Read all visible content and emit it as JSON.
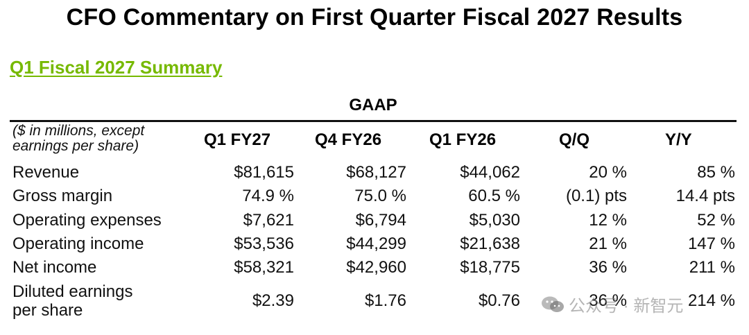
{
  "title": "CFO Commentary on First Quarter Fiscal 2027 Results",
  "summary_link": "Q1 Fiscal 2027 Summary",
  "table": {
    "group_header": "GAAP",
    "note_line1": "($ in millions, except",
    "note_line2": "earnings per share)",
    "columns": [
      "Q1 FY27",
      "Q4 FY26",
      "Q1 FY26",
      "Q/Q",
      "Y/Y"
    ],
    "rows": [
      {
        "label": "Revenue",
        "values": [
          "$81,615",
          "$68,127",
          "$44,062",
          "20 %",
          "85 %"
        ]
      },
      {
        "label": "Gross margin",
        "values": [
          "74.9 %",
          "75.0 %",
          "60.5 %",
          "(0.1) pts",
          "14.4 pts"
        ]
      },
      {
        "label": "Operating expenses",
        "values": [
          "$7,621",
          "$6,794",
          "$5,030",
          "12 %",
          "52 %"
        ]
      },
      {
        "label": "Operating income",
        "values": [
          "$53,536",
          "$44,299",
          "$21,638",
          "21 %",
          "147 %"
        ]
      },
      {
        "label": "Net income",
        "values": [
          "$58,321",
          "$42,960",
          "$18,775",
          "36 %",
          "211 %"
        ]
      },
      {
        "label_line1": "Diluted earnings",
        "label_line2": "per share",
        "values": [
          "$2.39",
          "$1.76",
          "$0.76",
          "36 %",
          "214 %"
        ]
      }
    ]
  },
  "watermark": {
    "text": "公众号 · 新智元",
    "icon": "wechat-icon"
  },
  "colors": {
    "accent": "#76b900",
    "text": "#111111"
  }
}
